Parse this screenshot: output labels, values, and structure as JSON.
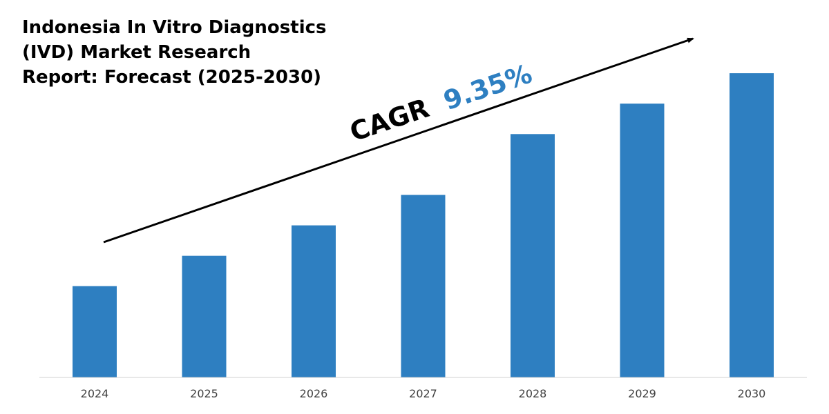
{
  "chart_data": {
    "type": "bar",
    "title_lines": [
      "Indonesia In Vitro Diagnostics",
      "(IVD) Market Research",
      "Report: Forecast (2025-2030)"
    ],
    "categories": [
      "2024",
      "2025",
      "2026",
      "2027",
      "2028",
      "2029",
      "2030"
    ],
    "values": [
      30,
      40,
      50,
      60,
      80,
      90,
      100
    ],
    "ylim": [
      0,
      115
    ],
    "xlabel": "",
    "ylabel": "",
    "grid": false,
    "bar_color": "#2e7fc1",
    "annotation": {
      "label": "CAGR",
      "value": "9.35%",
      "label_color": "#000000",
      "value_color": "#2e7fc1"
    }
  }
}
